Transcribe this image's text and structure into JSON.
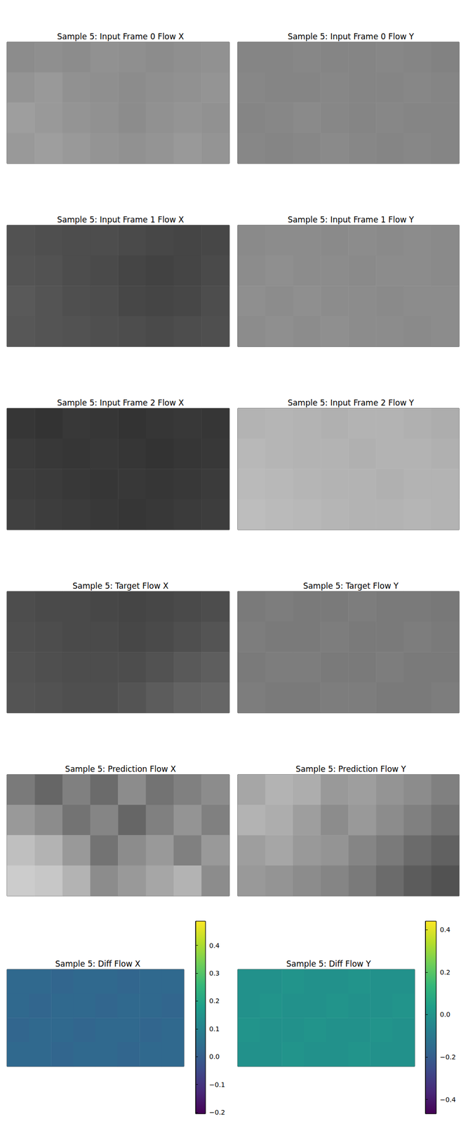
{
  "chart_data": [
    {
      "type": "heatmap",
      "title": "Sample 5: Input Frame 0 Flow X",
      "color": "gray",
      "crange": [
        0,
        1
      ],
      "cells": [
        [
          0.55,
          0.56,
          0.55,
          0.57,
          0.56,
          0.55,
          0.56,
          0.57
        ],
        [
          0.58,
          0.6,
          0.57,
          0.56,
          0.55,
          0.56,
          0.57,
          0.58
        ],
        [
          0.62,
          0.6,
          0.58,
          0.57,
          0.55,
          0.57,
          0.58,
          0.57
        ],
        [
          0.6,
          0.62,
          0.6,
          0.58,
          0.57,
          0.58,
          0.6,
          0.58
        ]
      ]
    },
    {
      "type": "heatmap",
      "title": "Sample 5: Input Frame 0 Flow Y",
      "color": "gray",
      "crange": [
        0,
        1
      ],
      "cells": [
        [
          0.52,
          0.52,
          0.53,
          0.52,
          0.52,
          0.53,
          0.52,
          0.51
        ],
        [
          0.53,
          0.52,
          0.52,
          0.53,
          0.52,
          0.52,
          0.53,
          0.52
        ],
        [
          0.52,
          0.53,
          0.54,
          0.53,
          0.52,
          0.53,
          0.52,
          0.52
        ],
        [
          0.53,
          0.52,
          0.53,
          0.54,
          0.53,
          0.52,
          0.53,
          0.52
        ]
      ]
    },
    {
      "type": "heatmap",
      "title": "Sample 5: Input Frame 1 Flow X",
      "color": "gray",
      "crange": [
        0,
        1
      ],
      "cells": [
        [
          0.32,
          0.31,
          0.3,
          0.3,
          0.29,
          0.28,
          0.27,
          0.28
        ],
        [
          0.33,
          0.32,
          0.3,
          0.29,
          0.27,
          0.26,
          0.27,
          0.29
        ],
        [
          0.35,
          0.33,
          0.31,
          0.3,
          0.28,
          0.27,
          0.28,
          0.3
        ],
        [
          0.34,
          0.33,
          0.32,
          0.31,
          0.3,
          0.29,
          0.3,
          0.31
        ]
      ]
    },
    {
      "type": "heatmap",
      "title": "Sample 5: Input Frame 1 Flow Y",
      "color": "gray",
      "crange": [
        0,
        1
      ],
      "cells": [
        [
          0.54,
          0.55,
          0.55,
          0.54,
          0.55,
          0.54,
          0.55,
          0.54
        ],
        [
          0.55,
          0.56,
          0.55,
          0.55,
          0.54,
          0.55,
          0.55,
          0.54
        ],
        [
          0.56,
          0.55,
          0.56,
          0.55,
          0.55,
          0.54,
          0.55,
          0.55
        ],
        [
          0.55,
          0.56,
          0.55,
          0.56,
          0.55,
          0.55,
          0.54,
          0.55
        ]
      ]
    },
    {
      "type": "heatmap",
      "title": "Sample 5: Input Frame 2 Flow X",
      "color": "gray",
      "crange": [
        0,
        1
      ],
      "cells": [
        [
          0.21,
          0.2,
          0.22,
          0.21,
          0.2,
          0.21,
          0.22,
          0.21
        ],
        [
          0.23,
          0.22,
          0.21,
          0.22,
          0.21,
          0.2,
          0.21,
          0.22
        ],
        [
          0.24,
          0.23,
          0.22,
          0.21,
          0.22,
          0.21,
          0.22,
          0.23
        ],
        [
          0.25,
          0.24,
          0.23,
          0.22,
          0.21,
          0.22,
          0.23,
          0.24
        ]
      ]
    },
    {
      "type": "heatmap",
      "title": "Sample 5: Input Frame 2 Flow Y",
      "color": "gray",
      "crange": [
        0,
        1
      ],
      "cells": [
        [
          0.7,
          0.71,
          0.7,
          0.69,
          0.7,
          0.7,
          0.69,
          0.68
        ],
        [
          0.72,
          0.71,
          0.7,
          0.7,
          0.69,
          0.7,
          0.7,
          0.69
        ],
        [
          0.73,
          0.72,
          0.71,
          0.7,
          0.7,
          0.69,
          0.7,
          0.7
        ],
        [
          0.74,
          0.73,
          0.72,
          0.71,
          0.7,
          0.7,
          0.71,
          0.7
        ]
      ]
    },
    {
      "type": "heatmap",
      "title": "Sample 5: Target Flow X",
      "color": "gray",
      "crange": [
        0,
        1
      ],
      "cells": [
        [
          0.3,
          0.29,
          0.29,
          0.28,
          0.27,
          0.28,
          0.29,
          0.3
        ],
        [
          0.31,
          0.3,
          0.29,
          0.29,
          0.28,
          0.29,
          0.31,
          0.33
        ],
        [
          0.32,
          0.31,
          0.3,
          0.3,
          0.3,
          0.32,
          0.35,
          0.37
        ],
        [
          0.33,
          0.32,
          0.31,
          0.31,
          0.33,
          0.36,
          0.39,
          0.4
        ]
      ]
    },
    {
      "type": "heatmap",
      "title": "Sample 5: Target Flow Y",
      "color": "gray",
      "crange": [
        0,
        1
      ],
      "cells": [
        [
          0.48,
          0.49,
          0.48,
          0.48,
          0.49,
          0.48,
          0.48,
          0.47
        ],
        [
          0.49,
          0.48,
          0.48,
          0.49,
          0.48,
          0.48,
          0.49,
          0.48
        ],
        [
          0.48,
          0.49,
          0.49,
          0.48,
          0.48,
          0.49,
          0.48,
          0.48
        ],
        [
          0.49,
          0.48,
          0.48,
          0.49,
          0.49,
          0.48,
          0.48,
          0.49
        ]
      ]
    },
    {
      "type": "heatmap",
      "title": "Sample 5: Prediction Flow X",
      "color": "gray",
      "crange": [
        0,
        1
      ],
      "cells": [
        [
          0.48,
          0.4,
          0.5,
          0.42,
          0.55,
          0.45,
          0.5,
          0.55
        ],
        [
          0.6,
          0.55,
          0.45,
          0.52,
          0.4,
          0.5,
          0.58,
          0.5
        ],
        [
          0.75,
          0.7,
          0.6,
          0.45,
          0.55,
          0.6,
          0.5,
          0.6
        ],
        [
          0.8,
          0.78,
          0.7,
          0.55,
          0.6,
          0.65,
          0.7,
          0.55
        ]
      ]
    },
    {
      "type": "heatmap",
      "title": "Sample 5: Prediction Flow Y",
      "color": "gray",
      "crange": [
        0,
        1
      ],
      "cells": [
        [
          0.65,
          0.7,
          0.68,
          0.6,
          0.62,
          0.58,
          0.55,
          0.5
        ],
        [
          0.7,
          0.68,
          0.62,
          0.55,
          0.6,
          0.55,
          0.5,
          0.45
        ],
        [
          0.62,
          0.65,
          0.6,
          0.58,
          0.52,
          0.48,
          0.42,
          0.38
        ],
        [
          0.6,
          0.58,
          0.55,
          0.52,
          0.48,
          0.42,
          0.36,
          0.32
        ]
      ]
    },
    {
      "type": "heatmap",
      "title": "Sample 5: Diff Flow X",
      "color": "viridis",
      "crange": [
        -0.205,
        0.487
      ],
      "cticks": [
        {
          "value": -0.2,
          "label": "−0.2"
        },
        {
          "value": -0.1,
          "label": "−0.1"
        },
        {
          "value": 0,
          "label": "0.0"
        },
        0.1,
        0.2,
        0.3,
        0.4
      ],
      "cells": [
        [
          0.03,
          0.03,
          0.02,
          0.03,
          0.03,
          0.02,
          0.03,
          0.03
        ],
        [
          0.03,
          0.02,
          0.03,
          0.03,
          0.02,
          0.03,
          0.03,
          0.02
        ],
        [
          0.02,
          0.03,
          0.03,
          0.02,
          0.03,
          0.03,
          0.02,
          0.03
        ],
        [
          0.03,
          0.03,
          0.02,
          0.03,
          0.03,
          0.02,
          0.03,
          0.03
        ]
      ]
    },
    {
      "type": "heatmap",
      "title": "Sample 5: Diff Flow Y",
      "color": "viridis",
      "crange": [
        -0.467,
        0.44
      ],
      "cticks": [
        {
          "value": -0.4,
          "label": "−0.4"
        },
        {
          "value": -0.2,
          "label": "−0.2"
        },
        {
          "value": 0,
          "label": "0.0"
        },
        0.2,
        0.4
      ],
      "cells": [
        [
          -0.01,
          -0.01,
          0.0,
          -0.01,
          -0.01,
          0.0,
          -0.01,
          -0.01
        ],
        [
          -0.01,
          0.0,
          -0.01,
          -0.01,
          0.0,
          -0.01,
          -0.01,
          0.0
        ],
        [
          0.0,
          -0.01,
          -0.01,
          0.0,
          -0.01,
          -0.01,
          0.0,
          -0.01
        ],
        [
          -0.01,
          -0.01,
          0.0,
          -0.01,
          -0.01,
          0.0,
          -0.01,
          -0.01
        ]
      ]
    }
  ]
}
